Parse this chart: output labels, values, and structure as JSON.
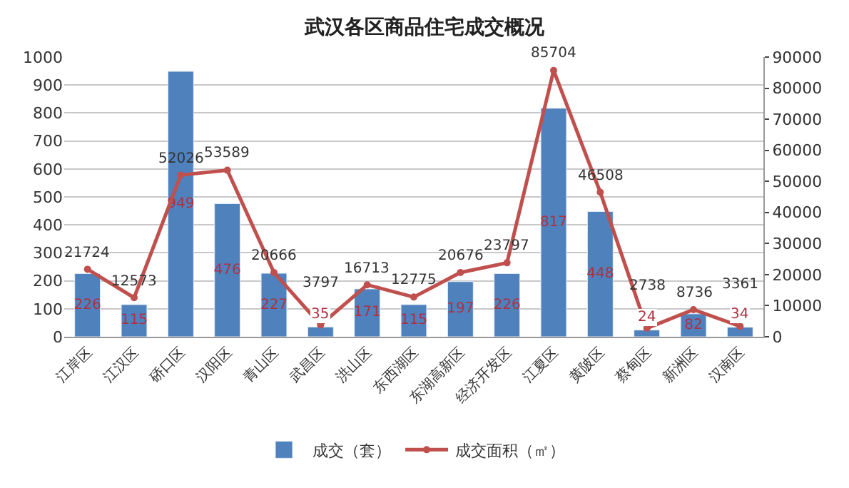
{
  "chart_data": {
    "type": "bar",
    "title": "武汉各区商品住宅成交概况",
    "categories": [
      "江岸区",
      "江汉区",
      "硚口区",
      "汉阳区",
      "青山区",
      "武昌区",
      "洪山区",
      "东西湖区",
      "东湖高新区",
      "经济开发区",
      "江夏区",
      "黄陂区",
      "蔡甸区",
      "新洲区",
      "汉南区"
    ],
    "series": [
      {
        "name": "成交（套）",
        "type": "bar",
        "color": "#4f81bd",
        "values": [
          226,
          115,
          949,
          476,
          227,
          35,
          171,
          115,
          197,
          226,
          817,
          448,
          24,
          82,
          34
        ]
      },
      {
        "name": "成交面积（㎡）",
        "type": "line",
        "axis": "y2",
        "color": "#c0504d",
        "values": [
          21724,
          12573,
          52026,
          53589,
          20666,
          3797,
          16713,
          12775,
          20676,
          23797,
          85704,
          46508,
          2738,
          8736,
          3361
        ]
      }
    ],
    "ylim": [
      0,
      1000
    ],
    "yticks": [
      0,
      100,
      200,
      300,
      400,
      500,
      600,
      700,
      800,
      900,
      1000
    ],
    "y2lim": [
      0,
      90000
    ],
    "y2ticks": [
      0,
      10000,
      20000,
      30000,
      40000,
      50000,
      60000,
      70000,
      80000,
      90000
    ],
    "data_labels": true,
    "grid": "y",
    "legend": "bottom",
    "marker": "circle",
    "line_style": "solid"
  }
}
